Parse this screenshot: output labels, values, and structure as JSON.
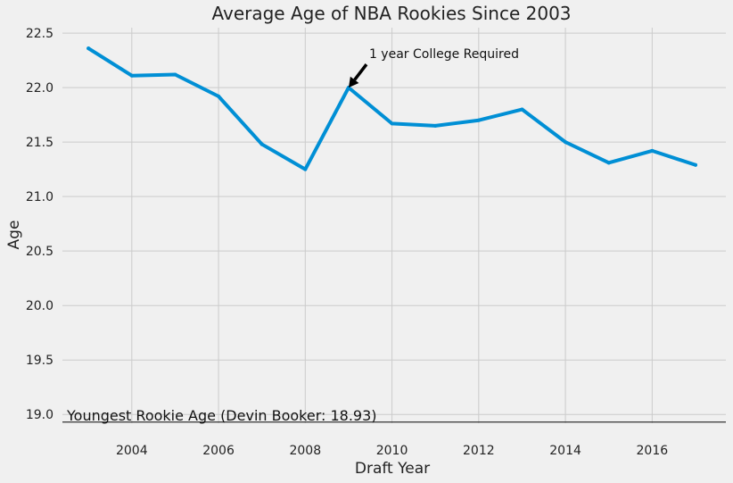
{
  "chart_data": {
    "type": "line",
    "title": "Average Age of NBA Rookies Since 2003",
    "xlabel": "Draft Year",
    "ylabel": "Age",
    "xlim": [
      2002.4,
      2017.7
    ],
    "ylim": [
      18.92,
      22.55
    ],
    "grid": true,
    "x": [
      2003,
      2004,
      2005,
      2006,
      2007,
      2008,
      2009,
      2010,
      2011,
      2012,
      2013,
      2014,
      2015,
      2016,
      2017
    ],
    "series": [
      {
        "values": [
          22.36,
          22.11,
          22.12,
          21.92,
          21.48,
          21.25,
          22.0,
          21.67,
          21.65,
          21.7,
          21.8,
          21.5,
          21.31,
          21.42,
          21.29
        ],
        "color": "#008fd5"
      }
    ],
    "xticks": [
      2004,
      2006,
      2008,
      2010,
      2012,
      2014,
      2016
    ],
    "xtick_labels": [
      "2004",
      "2006",
      "2008",
      "2010",
      "2012",
      "2014",
      "2016"
    ],
    "yticks": [
      19.0,
      19.5,
      20.0,
      20.5,
      21.0,
      21.5,
      22.0,
      22.5
    ],
    "ytick_labels": [
      "19.0",
      "19.5",
      "20.0",
      "20.5",
      "21.0",
      "21.5",
      "22.0",
      "22.5"
    ],
    "annotations": [
      {
        "text": "1 year College Required",
        "arrow_to": [
          2009,
          22.0
        ]
      }
    ],
    "hlines": [
      {
        "y": 18.93,
        "label": "Youngest Rookie Age (Devin Booker: 18.93)",
        "color": "#333333"
      }
    ],
    "colors": {
      "background": "#f0f0f0",
      "grid": "#cbcbcb",
      "line": "#008fd5"
    }
  }
}
